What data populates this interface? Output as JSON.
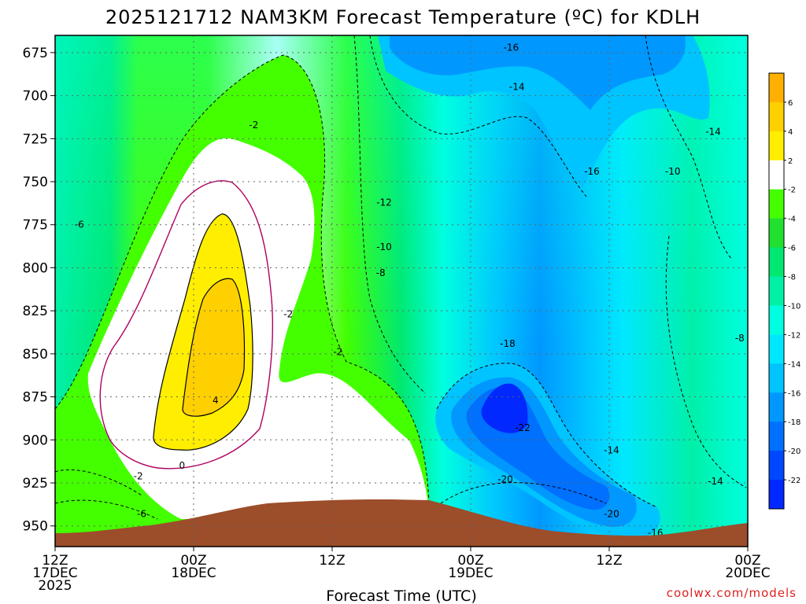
{
  "chart_data": {
    "type": "heatmap",
    "title": "2025121712 NAM3KM Forecast Temperature (ºC) for KDLH",
    "xlabel": "Forecast Time (UTC)",
    "ylabel": "",
    "credit": "coolwx.com/models",
    "y_axis": {
      "ticks": [
        "675",
        "700",
        "725",
        "750",
        "775",
        "800",
        "825",
        "850",
        "875",
        "900",
        "925",
        "950"
      ],
      "ylim": [
        665,
        962
      ],
      "inverted": true
    },
    "x_axis": {
      "ticks": [
        {
          "hour": 0,
          "line1": "12Z",
          "line2": "17DEC",
          "line3": "2025"
        },
        {
          "hour": 12,
          "line1": "00Z",
          "line2": "18DEC",
          "line3": ""
        },
        {
          "hour": 24,
          "line1": "12Z",
          "line2": "",
          "line3": ""
        },
        {
          "hour": 36,
          "line1": "00Z",
          "line2": "19DEC",
          "line3": ""
        },
        {
          "hour": 48,
          "line1": "12Z",
          "line2": "",
          "line3": ""
        },
        {
          "hour": 60,
          "line1": "00Z",
          "line2": "20DEC",
          "line3": ""
        }
      ],
      "xlim": [
        0,
        60
      ]
    },
    "colorbar": {
      "labels": [
        "6",
        "4",
        "2",
        "-2",
        "-4",
        "-6",
        "-8",
        "-10",
        "-12",
        "-14",
        "-16",
        "-18",
        "-20",
        "-22"
      ],
      "colors": [
        "#ffb000",
        "#ffd000",
        "#ffee00",
        "#ffffff",
        "#44ff00",
        "#22e030",
        "#00e870",
        "#00f0a8",
        "#00ffe0",
        "#00e8ff",
        "#00c4ff",
        "#0098ff",
        "#0070ff",
        "#0048ff",
        "#0028ff"
      ]
    },
    "contour_labels": [
      {
        "text": "-16",
        "hour": 39.5,
        "p": 672
      },
      {
        "text": "-14",
        "hour": 40.0,
        "p": 695
      },
      {
        "text": "-14",
        "hour": 57.0,
        "p": 721
      },
      {
        "text": "-16",
        "hour": 46.5,
        "p": 744
      },
      {
        "text": "-10",
        "hour": 53.5,
        "p": 744
      },
      {
        "text": "-12",
        "hour": 28.5,
        "p": 762
      },
      {
        "text": "-2",
        "hour": 17.2,
        "p": 717
      },
      {
        "text": "-6",
        "hour": 2.1,
        "p": 775
      },
      {
        "text": "-10",
        "hour": 28.5,
        "p": 788
      },
      {
        "text": "-8",
        "hour": 28.2,
        "p": 803
      },
      {
        "text": "-8",
        "hour": 59.3,
        "p": 841
      },
      {
        "text": "-2",
        "hour": 20.2,
        "p": 827
      },
      {
        "text": "-2",
        "hour": 24.5,
        "p": 849
      },
      {
        "text": "-18",
        "hour": 39.2,
        "p": 844
      },
      {
        "text": "4",
        "hour": 13.9,
        "p": 877
      },
      {
        "text": "-22",
        "hour": 40.5,
        "p": 893
      },
      {
        "text": "-14",
        "hour": 48.2,
        "p": 906
      },
      {
        "text": "-2",
        "hour": 7.2,
        "p": 921
      },
      {
        "text": "0",
        "hour": 11.0,
        "p": 915
      },
      {
        "text": "-20",
        "hour": 39.0,
        "p": 923
      },
      {
        "text": "-14",
        "hour": 57.2,
        "p": 924
      },
      {
        "text": "-6",
        "hour": 7.5,
        "p": 943
      },
      {
        "text": "-20",
        "hour": 48.2,
        "p": 943
      },
      {
        "text": "-16",
        "hour": 52.0,
        "p": 954
      }
    ],
    "features": {
      "warm_core_center": {
        "hour": 14.3,
        "p": 838,
        "max_temp_c": 5
      },
      "cold_core_center": {
        "hour": 39.5,
        "p": 873,
        "min_temp_c": -23
      },
      "terrain_color": "#9c4d2a"
    },
    "legend_placement": "right",
    "grid": true
  }
}
